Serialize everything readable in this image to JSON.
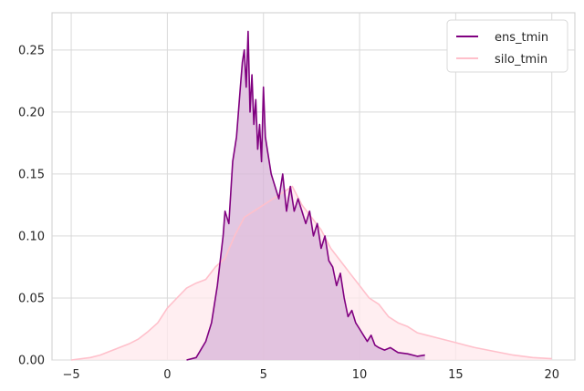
{
  "chart_data": {
    "type": "area",
    "xlim": [
      -6.0,
      21.2
    ],
    "ylim": [
      0,
      0.28
    ],
    "xticks": [
      -5,
      0,
      5,
      10,
      15,
      20
    ],
    "yticks": [
      0.0,
      0.05,
      0.1,
      0.15,
      0.2,
      0.25
    ],
    "xtick_labels": [
      "−5",
      "0",
      "5",
      "10",
      "15",
      "20"
    ],
    "ytick_labels": [
      "0.00",
      "0.05",
      "0.10",
      "0.15",
      "0.20",
      "0.25"
    ],
    "grid": true,
    "legend_position": "top-right",
    "series": [
      {
        "name": "ens_tmin",
        "color": "#800080",
        "fill_color": "#d8b4d8",
        "x": [
          1.0,
          1.5,
          2.0,
          2.3,
          2.6,
          2.9,
          3.0,
          3.2,
          3.4,
          3.6,
          3.8,
          3.9,
          4.0,
          4.1,
          4.2,
          4.3,
          4.4,
          4.5,
          4.6,
          4.7,
          4.8,
          4.9,
          5.0,
          5.1,
          5.2,
          5.4,
          5.6,
          5.8,
          6.0,
          6.2,
          6.4,
          6.6,
          6.8,
          7.0,
          7.2,
          7.4,
          7.6,
          7.8,
          8.0,
          8.2,
          8.4,
          8.6,
          8.8,
          9.0,
          9.2,
          9.4,
          9.6,
          9.8,
          10.0,
          10.2,
          10.4,
          10.6,
          10.8,
          11.0,
          11.3,
          11.6,
          12.0,
          12.5,
          13.0,
          13.4
        ],
        "values": [
          0.0,
          0.002,
          0.015,
          0.03,
          0.06,
          0.1,
          0.12,
          0.11,
          0.16,
          0.18,
          0.22,
          0.24,
          0.25,
          0.22,
          0.265,
          0.2,
          0.23,
          0.19,
          0.21,
          0.17,
          0.19,
          0.16,
          0.22,
          0.18,
          0.17,
          0.15,
          0.14,
          0.13,
          0.15,
          0.12,
          0.14,
          0.12,
          0.13,
          0.12,
          0.11,
          0.12,
          0.1,
          0.11,
          0.09,
          0.1,
          0.08,
          0.075,
          0.06,
          0.07,
          0.05,
          0.035,
          0.04,
          0.03,
          0.025,
          0.02,
          0.015,
          0.02,
          0.012,
          0.01,
          0.008,
          0.01,
          0.006,
          0.005,
          0.003,
          0.004
        ]
      },
      {
        "name": "silo_tmin",
        "color": "#ffc0cb",
        "fill_color": "#ffe8ec",
        "x": [
          -5.0,
          -4.0,
          -3.5,
          -3.0,
          -2.5,
          -2.0,
          -1.5,
          -1.0,
          -0.5,
          0.0,
          0.5,
          1.0,
          1.5,
          2.0,
          2.5,
          3.0,
          3.5,
          4.0,
          4.5,
          5.0,
          5.5,
          6.0,
          6.5,
          7.0,
          7.5,
          8.0,
          8.5,
          9.0,
          9.5,
          10.0,
          10.5,
          11.0,
          11.5,
          12.0,
          12.5,
          13.0,
          13.5,
          14.0,
          15.0,
          16.0,
          17.0,
          18.0,
          19.0,
          20.0
        ],
        "values": [
          0.0,
          0.002,
          0.004,
          0.007,
          0.01,
          0.013,
          0.017,
          0.023,
          0.03,
          0.042,
          0.05,
          0.058,
          0.062,
          0.065,
          0.075,
          0.082,
          0.1,
          0.115,
          0.12,
          0.125,
          0.13,
          0.135,
          0.14,
          0.125,
          0.115,
          0.105,
          0.09,
          0.08,
          0.07,
          0.06,
          0.05,
          0.045,
          0.035,
          0.03,
          0.027,
          0.022,
          0.02,
          0.018,
          0.014,
          0.01,
          0.007,
          0.004,
          0.002,
          0.001
        ]
      }
    ]
  }
}
